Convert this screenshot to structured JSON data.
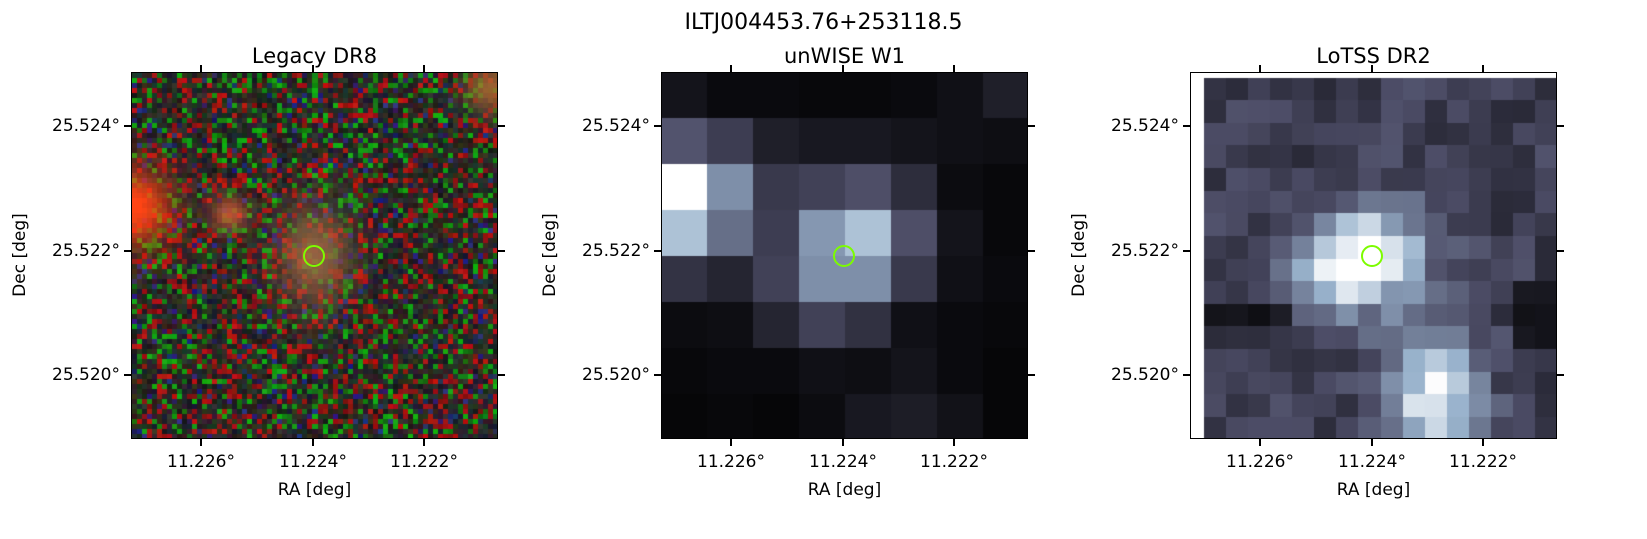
{
  "figure": {
    "suptitle": "ILTJ004453.76+253118.5",
    "marker_color": "#7cfc00"
  },
  "panels": [
    {
      "title": "Legacy DR8",
      "xlabel": "RA [deg]",
      "ylabel": "Dec [deg]",
      "xticks": [
        "11.226°",
        "11.224°",
        "11.222°"
      ],
      "yticks": [
        "25.524°",
        "25.522°",
        "25.520°"
      ],
      "image_type": "rgb-optical",
      "marker": "target-circle"
    },
    {
      "title": "unWISE W1",
      "xlabel": "RA [deg]",
      "ylabel": "Dec [deg]",
      "xticks": [
        "11.226°",
        "11.224°",
        "11.222°"
      ],
      "yticks": [
        "25.524°",
        "25.522°",
        "25.520°"
      ],
      "image_type": "bone-colormap",
      "marker": "target-circle"
    },
    {
      "title": "LoTSS DR2",
      "xlabel": "RA [deg]",
      "ylabel": "Dec [deg]",
      "xticks": [
        "11.226°",
        "11.224°",
        "11.222°"
      ],
      "yticks": [
        "25.524°",
        "25.522°",
        "25.520°"
      ],
      "image_type": "bone-colormap",
      "marker": "target-circle"
    }
  ]
}
